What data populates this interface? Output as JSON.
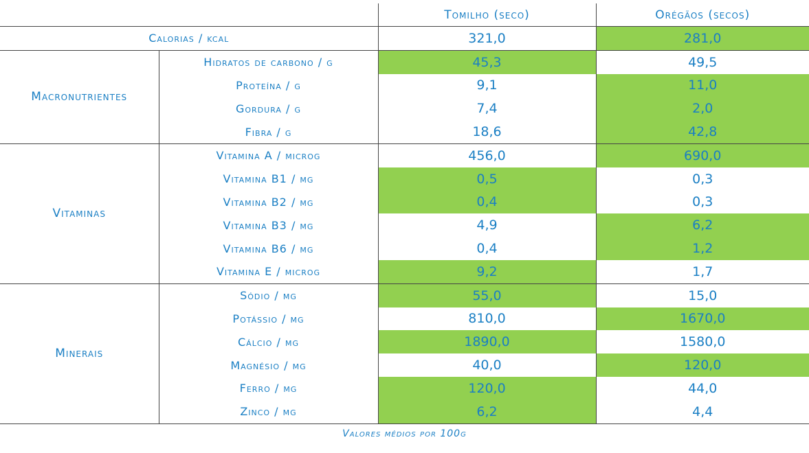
{
  "header": {
    "col1": "Tomilho (seco)",
    "col2": "Orégãos (secos)"
  },
  "calorias": {
    "label": "Calorias / kcal",
    "v1": "321,0",
    "v2": "281,0",
    "hi1": false,
    "hi2": true
  },
  "groups": [
    {
      "name": "Macronutrientes",
      "rows": [
        {
          "label": "Hidratos de carbono / g",
          "v1": "45,3",
          "v2": "49,5",
          "hi1": true,
          "hi2": false
        },
        {
          "label": "Proteína / g",
          "v1": "9,1",
          "v2": "11,0",
          "hi1": false,
          "hi2": true
        },
        {
          "label": "Gordura / g",
          "v1": "7,4",
          "v2": "2,0",
          "hi1": false,
          "hi2": true
        },
        {
          "label": "Fibra / g",
          "v1": "18,6",
          "v2": "42,8",
          "hi1": false,
          "hi2": true
        }
      ]
    },
    {
      "name": "Vitaminas",
      "rows": [
        {
          "label": "Vitamina A / microg",
          "v1": "456,0",
          "v2": "690,0",
          "hi1": false,
          "hi2": true
        },
        {
          "label": "Vitamina B1 / mg",
          "v1": "0,5",
          "v2": "0,3",
          "hi1": true,
          "hi2": false
        },
        {
          "label": "Vitamina B2 / mg",
          "v1": "0,4",
          "v2": "0,3",
          "hi1": true,
          "hi2": false
        },
        {
          "label": "Vitamina B3 / mg",
          "v1": "4,9",
          "v2": "6,2",
          "hi1": false,
          "hi2": true
        },
        {
          "label": "Vitamina B6 / mg",
          "v1": "0,4",
          "v2": "1,2",
          "hi1": false,
          "hi2": true
        },
        {
          "label": "Vitamina E / microg",
          "v1": "9,2",
          "v2": "1,7",
          "hi1": true,
          "hi2": false
        }
      ]
    },
    {
      "name": "Minerais",
      "rows": [
        {
          "label": "Sódio / mg",
          "v1": "55,0",
          "v2": "15,0",
          "hi1": true,
          "hi2": false
        },
        {
          "label": "Potássio / mg",
          "v1": "810,0",
          "v2": "1670,0",
          "hi1": false,
          "hi2": true
        },
        {
          "label": "Cálcio / mg",
          "v1": "1890,0",
          "v2": "1580,0",
          "hi1": true,
          "hi2": false
        },
        {
          "label": "Magnésio / mg",
          "v1": "40,0",
          "v2": "120,0",
          "hi1": false,
          "hi2": true
        },
        {
          "label": "Ferro / mg",
          "v1": "120,0",
          "v2": "44,0",
          "hi1": true,
          "hi2": false
        },
        {
          "label": "Zinco / mg",
          "v1": "6,2",
          "v2": "4,4",
          "hi1": true,
          "hi2": false
        }
      ]
    }
  ],
  "footnote": "Valores médios por 100g",
  "colors": {
    "text": "#1a7fc4",
    "highlight": "#92d050",
    "rule": "#444444"
  }
}
